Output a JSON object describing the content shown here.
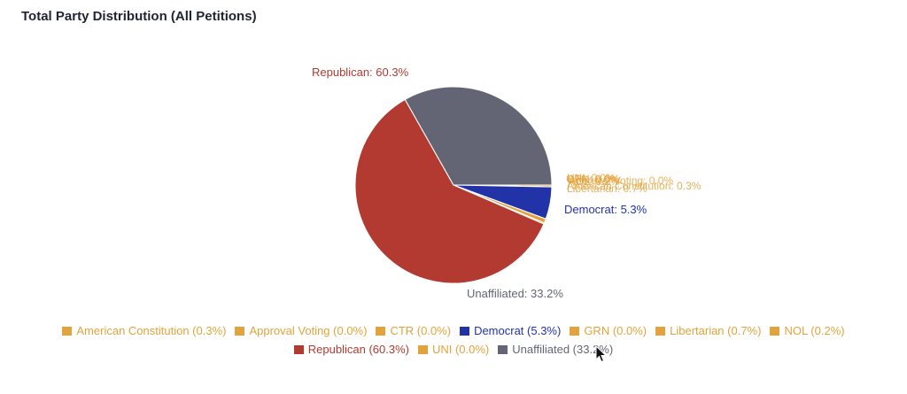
{
  "header": {
    "title": "Total Party Distribution (All Petitions)"
  },
  "chart_data": {
    "type": "pie",
    "title": "Total Party Distribution (All Petitions)",
    "legend_position": "bottom",
    "slices": [
      {
        "label": "American Constitution",
        "value": 0.3,
        "color": "#e3a33c",
        "legend": "American Constitution (0.3%)",
        "pie_label": "American Constitution: 0.3%"
      },
      {
        "label": "Approval Voting",
        "value": 0.0,
        "color": "#e3a33c",
        "legend": "Approval Voting (0.0%)",
        "pie_label": "Approval Voting: 0.0%"
      },
      {
        "label": "CTR",
        "value": 0.0,
        "color": "#e3a33c",
        "legend": "CTR (0.0%)",
        "pie_label": "CTR: 0.0%"
      },
      {
        "label": "Democrat",
        "value": 5.3,
        "color": "#2233a8",
        "legend": "Democrat (5.3%)",
        "pie_label": "Democrat: 5.3%"
      },
      {
        "label": "GRN",
        "value": 0.0,
        "color": "#e3a33c",
        "legend": "GRN (0.0%)",
        "pie_label": "GRN: 0.0%"
      },
      {
        "label": "Libertarian",
        "value": 0.7,
        "color": "#e3a33c",
        "legend": "Libertarian (0.7%)",
        "pie_label": "Libertarian: 0.7%"
      },
      {
        "label": "NOL",
        "value": 0.2,
        "color": "#e3a33c",
        "legend": "NOL (0.2%)",
        "pie_label": "NOL: 0.2%"
      },
      {
        "label": "Republican",
        "value": 60.3,
        "color": "#b33a31",
        "legend": "Republican (60.3%)",
        "pie_label": "Republican: 60.3%"
      },
      {
        "label": "UNI",
        "value": 0.0,
        "color": "#e3a33c",
        "legend": "UNI (0.0%)",
        "pie_label": "UNI: 0.0%"
      },
      {
        "label": "Unaffiliated",
        "value": 33.2,
        "color": "#636574",
        "legend": "Unaffiliated (33.2%)",
        "pie_label": "Unaffiliated: 33.2%"
      }
    ]
  }
}
